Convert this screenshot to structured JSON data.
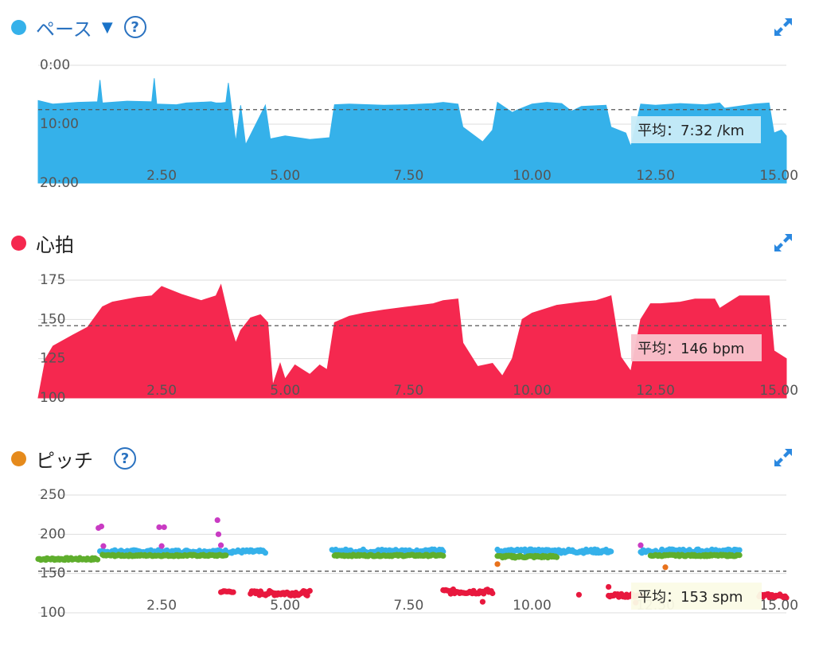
{
  "colors": {
    "pace": "#35b1ea",
    "heart": "#f5284f",
    "pitch_dot": "#e58a1c",
    "pitch_green": "#5fae2d",
    "pitch_blue": "#35b1ea",
    "pitch_red": "#e8183e",
    "pitch_purple": "#c93bc3",
    "pitch_orange": "#e8721c",
    "accent": "#1a73c8"
  },
  "icons": {
    "expand": "expand-arrows-icon",
    "help": "question-mark-icon",
    "dropdown": "triangle-down-icon"
  },
  "sections": {
    "pace": {
      "title": "ペース",
      "help": "?",
      "avg_label": "平均：7:32 /km"
    },
    "heart": {
      "title": "心拍",
      "avg_label": "平均：146 bpm"
    },
    "pitch": {
      "title": "ピッチ",
      "help": "?",
      "avg_label": "平均：153 spm"
    }
  },
  "chart_data": [
    {
      "type": "area",
      "series_color": "pace",
      "inverted_y": true,
      "y_unit": "min/km",
      "ylim": [
        0,
        20
      ],
      "y_ticks": [
        "0:00",
        "10:00",
        "20:00"
      ],
      "x_ticks": [
        "2.50",
        "5.00",
        "7.50",
        "10.00",
        "12.50",
        "15.00"
      ],
      "x_tick_values": [
        2.5,
        5,
        7.5,
        10,
        12.5,
        15
      ],
      "xlim": [
        0,
        15.15
      ],
      "average": 7.53,
      "grid": true,
      "x": [
        0,
        0.3,
        0.8,
        1.2,
        1.25,
        1.3,
        1.8,
        2.3,
        2.35,
        2.4,
        2.8,
        3.0,
        3.5,
        3.6,
        3.7,
        3.8,
        3.85,
        4.0,
        4.1,
        4.2,
        4.6,
        4.7,
        5.0,
        5.5,
        5.9,
        6.0,
        6.3,
        7.0,
        7.5,
        8.0,
        8.2,
        8.5,
        8.6,
        9.0,
        9.2,
        9.3,
        9.6,
        9.7,
        10.0,
        10.3,
        10.6,
        10.8,
        11.0,
        11.5,
        11.6,
        11.9,
        12.0,
        12.2,
        12.5,
        13.0,
        13.5,
        13.8,
        13.9,
        14.5,
        14.8,
        14.9,
        15.05,
        15.15
      ],
      "y": [
        6,
        6.6,
        6.3,
        6.2,
        2.5,
        6.4,
        6.1,
        6.2,
        2.2,
        6.6,
        6.7,
        6.4,
        6.2,
        6.4,
        6.4,
        6.3,
        3.0,
        13.0,
        6.8,
        13.5,
        6.8,
        12.5,
        12.0,
        12.6,
        12.3,
        6.7,
        6.6,
        6.8,
        6.7,
        6.5,
        6.3,
        6.6,
        10.5,
        13.0,
        11.0,
        6.3,
        8.0,
        7.6,
        6.6,
        6.3,
        6.5,
        7.8,
        7.0,
        6.8,
        10.5,
        11.5,
        13.8,
        6.6,
        6.8,
        6.5,
        6.7,
        6.4,
        7.3,
        6.6,
        6.4,
        11.5,
        11.0,
        12.0
      ]
    },
    {
      "type": "area",
      "series_color": "heart",
      "y_unit": "bpm",
      "ylim": [
        100,
        175
      ],
      "y_ticks": [
        "175",
        "150",
        "125",
        "100"
      ],
      "x_ticks": [
        "2.50",
        "5.00",
        "7.50",
        "10.00",
        "12.50",
        "15.00"
      ],
      "x_tick_values": [
        2.5,
        5,
        7.5,
        10,
        12.5,
        15
      ],
      "xlim": [
        0,
        15.15
      ],
      "average": 146,
      "grid": true,
      "x": [
        0,
        0.15,
        0.3,
        0.7,
        1.0,
        1.3,
        1.5,
        2.0,
        2.3,
        2.5,
        2.9,
        3.3,
        3.6,
        3.7,
        3.9,
        4.0,
        4.1,
        4.3,
        4.5,
        4.65,
        4.75,
        4.9,
        5.0,
        5.2,
        5.5,
        5.7,
        5.85,
        6.0,
        6.3,
        6.6,
        7.0,
        7.5,
        8.0,
        8.2,
        8.5,
        8.6,
        8.9,
        9.2,
        9.4,
        9.6,
        9.8,
        10.0,
        10.5,
        11.0,
        11.3,
        11.5,
        11.6,
        11.8,
        12.0,
        12.2,
        12.4,
        12.6,
        13.0,
        13.3,
        13.7,
        13.8,
        14.2,
        14.5,
        14.8,
        14.9,
        15.15
      ],
      "y": [
        100,
        125,
        133,
        140,
        145,
        158,
        161,
        164,
        165,
        171,
        166,
        162,
        165,
        172,
        145,
        135,
        143,
        151,
        153,
        148,
        108,
        122,
        112,
        121,
        115,
        121,
        118,
        148,
        152,
        154,
        156,
        158,
        160,
        162,
        163,
        135,
        120,
        122,
        114,
        125,
        150,
        154,
        159,
        161,
        162,
        164,
        165,
        126,
        117,
        150,
        160,
        160,
        161,
        163,
        163,
        157,
        165,
        165,
        165,
        130,
        125
      ]
    },
    {
      "type": "scatter",
      "ylim": [
        100,
        250
      ],
      "y_ticks": [
        "250",
        "200",
        "150",
        "100"
      ],
      "x_ticks": [
        "2.50",
        "5.00",
        "7.50",
        "10.00",
        "12.50",
        "15.00"
      ],
      "x_tick_values": [
        2.5,
        5,
        7.5,
        10,
        12.5,
        15
      ],
      "xlim": [
        0,
        15.15
      ],
      "average": 153,
      "grid": true,
      "segments": [
        {
          "color": "pitch_green",
          "x0": 0.0,
          "x1": 1.2,
          "y0": 167,
          "y1": 170
        },
        {
          "color": "pitch_blue",
          "x0": 1.25,
          "x1": 4.6,
          "y0": 176,
          "y1": 180
        },
        {
          "color": "pitch_green",
          "x0": 1.3,
          "x1": 3.8,
          "y0": 172,
          "y1": 174
        },
        {
          "color": "pitch_red",
          "x0": 3.7,
          "x1": 3.95,
          "y0": 126,
          "y1": 128
        },
        {
          "color": "pitch_red",
          "x0": 4.3,
          "x1": 5.5,
          "y0": 122,
          "y1": 128
        },
        {
          "color": "pitch_blue",
          "x0": 5.95,
          "x1": 8.2,
          "y0": 176,
          "y1": 181
        },
        {
          "color": "pitch_green",
          "x0": 6.0,
          "x1": 8.2,
          "y0": 172,
          "y1": 174
        },
        {
          "color": "pitch_red",
          "x0": 8.2,
          "x1": 9.2,
          "y0": 124,
          "y1": 130
        },
        {
          "color": "pitch_blue",
          "x0": 9.3,
          "x1": 11.6,
          "y0": 176,
          "y1": 181
        },
        {
          "color": "pitch_green",
          "x0": 9.3,
          "x1": 10.5,
          "y0": 170,
          "y1": 173
        },
        {
          "color": "pitch_red",
          "x0": 11.55,
          "x1": 12.2,
          "y0": 120,
          "y1": 124
        },
        {
          "color": "pitch_blue",
          "x0": 12.2,
          "x1": 14.2,
          "y0": 176,
          "y1": 181
        },
        {
          "color": "pitch_green",
          "x0": 12.4,
          "x1": 14.2,
          "y0": 172,
          "y1": 174
        },
        {
          "color": "pitch_red",
          "x0": 14.6,
          "x1": 15.15,
          "y0": 119,
          "y1": 124
        }
      ],
      "points": [
        {
          "x": 1.22,
          "y": 208,
          "color": "pitch_purple"
        },
        {
          "x": 1.28,
          "y": 210,
          "color": "pitch_purple"
        },
        {
          "x": 1.32,
          "y": 185,
          "color": "pitch_purple"
        },
        {
          "x": 2.45,
          "y": 209,
          "color": "pitch_purple"
        },
        {
          "x": 2.55,
          "y": 209,
          "color": "pitch_purple"
        },
        {
          "x": 2.5,
          "y": 185,
          "color": "pitch_purple"
        },
        {
          "x": 3.63,
          "y": 218,
          "color": "pitch_purple"
        },
        {
          "x": 3.65,
          "y": 200,
          "color": "pitch_purple"
        },
        {
          "x": 3.7,
          "y": 186,
          "color": "pitch_purple"
        },
        {
          "x": 12.2,
          "y": 186,
          "color": "pitch_purple"
        },
        {
          "x": 9.3,
          "y": 162,
          "color": "pitch_orange"
        },
        {
          "x": 12.7,
          "y": 158,
          "color": "pitch_orange"
        },
        {
          "x": 10.95,
          "y": 123,
          "color": "pitch_red"
        },
        {
          "x": 11.55,
          "y": 133,
          "color": "pitch_red"
        },
        {
          "x": 9.0,
          "y": 114,
          "color": "pitch_red"
        },
        {
          "x": 12.1,
          "y": 113,
          "color": "pitch_red"
        }
      ]
    }
  ]
}
